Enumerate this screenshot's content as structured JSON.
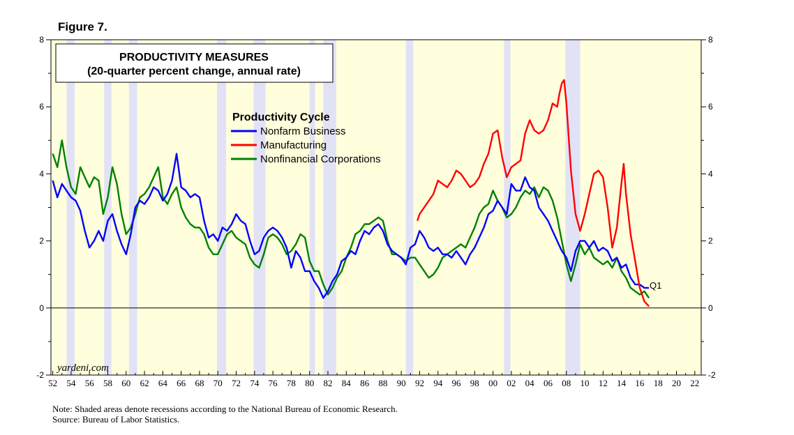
{
  "figure_label": "Figure 7.",
  "notes": {
    "note": "Note: Shaded areas denote recessions according to the National Bureau of Economic Research.",
    "source": "Source: Bureau of Labor Statistics."
  },
  "chart_data": {
    "type": "line",
    "title": "PRODUCTIVITY MEASURES",
    "subtitle": "(20-quarter percent change, annual rate)",
    "legend_title": "Productivity Cycle",
    "watermark": "yardeni.com",
    "end_label": "Q1",
    "xlabel": "",
    "ylabel": "",
    "xlim": [
      1951.8,
      2022.7
    ],
    "ylim": [
      -2,
      8
    ],
    "y_ticks": [
      -2,
      0,
      2,
      4,
      6,
      8
    ],
    "y_tick_labels": [
      "-2",
      "0",
      "2",
      "4",
      "6",
      "8"
    ],
    "x_ticks": [
      1952,
      1954,
      1956,
      1958,
      1960,
      1962,
      1964,
      1966,
      1968,
      1970,
      1972,
      1974,
      1976,
      1978,
      1980,
      1982,
      1984,
      1986,
      1988,
      1990,
      1992,
      1994,
      1996,
      1998,
      2000,
      2002,
      2004,
      2006,
      2008,
      2010,
      2012,
      2014,
      2016,
      2018,
      2020,
      2022
    ],
    "x_tick_labels": [
      "52",
      "54",
      "56",
      "58",
      "60",
      "62",
      "64",
      "66",
      "68",
      "70",
      "72",
      "74",
      "76",
      "78",
      "80",
      "82",
      "84",
      "86",
      "88",
      "90",
      "92",
      "94",
      "96",
      "98",
      "00",
      "02",
      "04",
      "06",
      "08",
      "10",
      "12",
      "14",
      "16",
      "18",
      "20",
      "22"
    ],
    "recessions": [
      [
        1953.5,
        1954.4
      ],
      [
        1957.6,
        1958.4
      ],
      [
        1960.3,
        1961.2
      ],
      [
        1969.9,
        1970.9
      ],
      [
        1973.9,
        1975.2
      ],
      [
        1980.0,
        1980.6
      ],
      [
        1981.5,
        1982.9
      ],
      [
        1990.5,
        1991.3
      ],
      [
        2001.2,
        2001.9
      ],
      [
        2007.9,
        2009.5
      ]
    ],
    "colors": {
      "background": "#ffffdd",
      "recession": "#e2e2f7",
      "axis": "#000000",
      "title_box": "#ffffff"
    },
    "series": [
      {
        "name": "Nonfarm Business",
        "color": "#0000ff",
        "x": [
          1952.0,
          1952.5,
          1953.0,
          1953.5,
          1954.0,
          1954.5,
          1955.0,
          1955.5,
          1956.0,
          1956.5,
          1957.0,
          1957.5,
          1958.0,
          1958.5,
          1959.0,
          1959.5,
          1960.0,
          1960.5,
          1961.0,
          1961.5,
          1962.0,
          1962.5,
          1963.0,
          1963.5,
          1964.0,
          1964.5,
          1965.0,
          1965.5,
          1966.0,
          1966.5,
          1967.0,
          1967.5,
          1968.0,
          1968.5,
          1969.0,
          1969.5,
          1970.0,
          1970.5,
          1971.0,
          1971.5,
          1972.0,
          1972.5,
          1973.0,
          1973.5,
          1974.0,
          1974.5,
          1975.0,
          1975.5,
          1976.0,
          1976.5,
          1977.0,
          1977.5,
          1978.0,
          1978.5,
          1979.0,
          1979.5,
          1980.0,
          1980.5,
          1981.0,
          1981.5,
          1982.0,
          1982.5,
          1983.0,
          1983.5,
          1984.0,
          1984.5,
          1985.0,
          1985.5,
          1986.0,
          1986.5,
          1987.0,
          1987.5,
          1988.0,
          1988.5,
          1989.0,
          1989.5,
          1990.0,
          1990.5,
          1991.0,
          1991.5,
          1992.0,
          1992.5,
          1993.0,
          1993.5,
          1994.0,
          1994.5,
          1995.0,
          1995.5,
          1996.0,
          1996.5,
          1997.0,
          1997.5,
          1998.0,
          1998.5,
          1999.0,
          1999.5,
          2000.0,
          2000.5,
          2001.0,
          2001.5,
          2002.0,
          2002.5,
          2003.0,
          2003.5,
          2004.0,
          2004.5,
          2005.0,
          2005.5,
          2006.0,
          2006.5,
          2007.0,
          2007.5,
          2008.0,
          2008.5,
          2009.0,
          2009.5,
          2010.0,
          2010.5,
          2011.0,
          2011.5,
          2012.0,
          2012.5,
          2013.0,
          2013.5,
          2014.0,
          2014.5,
          2015.0,
          2015.5,
          2016.0,
          2016.5,
          2017.0
        ],
        "values": [
          3.8,
          3.3,
          3.7,
          3.5,
          3.3,
          3.2,
          2.9,
          2.3,
          1.8,
          2.0,
          2.3,
          2.0,
          2.6,
          2.8,
          2.3,
          1.9,
          1.6,
          2.2,
          3.0,
          3.2,
          3.1,
          3.3,
          3.6,
          3.5,
          3.2,
          3.4,
          3.8,
          4.6,
          3.6,
          3.5,
          3.3,
          3.4,
          3.3,
          2.6,
          2.1,
          2.2,
          2.0,
          2.4,
          2.3,
          2.5,
          2.8,
          2.6,
          2.5,
          2.0,
          1.6,
          1.7,
          2.1,
          2.3,
          2.4,
          2.3,
          2.1,
          1.8,
          1.2,
          1.7,
          1.5,
          1.1,
          1.1,
          0.8,
          0.6,
          0.3,
          0.5,
          0.8,
          1.0,
          1.4,
          1.5,
          1.7,
          1.6,
          2.0,
          2.3,
          2.2,
          2.4,
          2.5,
          2.3,
          1.9,
          1.7,
          1.6,
          1.5,
          1.3,
          1.8,
          1.9,
          2.3,
          2.1,
          1.8,
          1.7,
          1.8,
          1.6,
          1.6,
          1.5,
          1.7,
          1.5,
          1.3,
          1.6,
          1.8,
          2.1,
          2.4,
          2.8,
          2.9,
          3.2,
          3.0,
          2.8,
          3.7,
          3.5,
          3.5,
          3.9,
          3.6,
          3.5,
          3.0,
          2.8,
          2.6,
          2.3,
          2.0,
          1.7,
          1.5,
          1.1,
          1.7,
          2.0,
          2.0,
          1.8,
          2.0,
          1.7,
          1.8,
          1.7,
          1.4,
          1.5,
          1.2,
          1.3,
          0.9,
          0.7,
          0.7,
          0.6,
          0.6
        ]
      },
      {
        "name": "Manufacturing",
        "color": "#ff0000",
        "x": [
          1991.75,
          1992.0,
          1992.5,
          1993.0,
          1993.5,
          1994.0,
          1994.5,
          1995.0,
          1995.5,
          1996.0,
          1996.5,
          1997.0,
          1997.5,
          1998.0,
          1998.5,
          1999.0,
          1999.5,
          2000.0,
          2000.5,
          2001.0,
          2001.5,
          2002.0,
          2002.5,
          2003.0,
          2003.5,
          2004.0,
          2004.5,
          2005.0,
          2005.5,
          2006.0,
          2006.5,
          2007.0,
          2007.25,
          2007.5,
          2007.75,
          2008.0,
          2008.5,
          2009.0,
          2009.5,
          2010.0,
          2010.5,
          2011.0,
          2011.5,
          2012.0,
          2012.5,
          2013.0,
          2013.5,
          2014.0,
          2014.25,
          2014.5,
          2015.0,
          2015.5,
          2016.0,
          2016.5,
          2017.0
        ],
        "values": [
          2.6,
          2.8,
          3.0,
          3.2,
          3.4,
          3.8,
          3.7,
          3.6,
          3.8,
          4.1,
          4.0,
          3.8,
          3.6,
          3.7,
          3.9,
          4.3,
          4.6,
          5.2,
          5.3,
          4.5,
          3.9,
          4.2,
          4.3,
          4.4,
          5.2,
          5.6,
          5.3,
          5.2,
          5.3,
          5.6,
          6.1,
          6.0,
          6.4,
          6.7,
          6.8,
          6.1,
          4.1,
          2.8,
          2.3,
          2.8,
          3.4,
          4.0,
          4.1,
          3.9,
          3.0,
          1.8,
          2.4,
          3.7,
          4.3,
          3.4,
          2.2,
          1.4,
          0.6,
          0.2,
          0.05
        ]
      },
      {
        "name": "Nonfinancial Corporations",
        "color": "#008000",
        "x": [
          1952.0,
          1952.5,
          1953.0,
          1953.5,
          1954.0,
          1954.5,
          1955.0,
          1955.5,
          1956.0,
          1956.5,
          1957.0,
          1957.5,
          1958.0,
          1958.5,
          1959.0,
          1959.5,
          1960.0,
          1960.5,
          1961.0,
          1961.5,
          1962.0,
          1962.5,
          1963.0,
          1963.5,
          1964.0,
          1964.5,
          1965.0,
          1965.5,
          1966.0,
          1966.5,
          1967.0,
          1967.5,
          1968.0,
          1968.5,
          1969.0,
          1969.5,
          1970.0,
          1970.5,
          1971.0,
          1971.5,
          1972.0,
          1972.5,
          1973.0,
          1973.5,
          1974.0,
          1974.5,
          1975.0,
          1975.5,
          1976.0,
          1976.5,
          1977.0,
          1977.5,
          1978.0,
          1978.5,
          1979.0,
          1979.5,
          1980.0,
          1980.5,
          1981.0,
          1981.5,
          1982.0,
          1982.5,
          1983.0,
          1983.5,
          1984.0,
          1984.5,
          1985.0,
          1985.5,
          1986.0,
          1986.5,
          1987.0,
          1987.5,
          1988.0,
          1988.5,
          1989.0,
          1989.5,
          1990.0,
          1990.5,
          1991.0,
          1991.5,
          1992.0,
          1992.5,
          1993.0,
          1993.5,
          1994.0,
          1994.5,
          1995.0,
          1995.5,
          1996.0,
          1996.5,
          1997.0,
          1997.5,
          1998.0,
          1998.5,
          1999.0,
          1999.5,
          2000.0,
          2000.5,
          2001.0,
          2001.5,
          2002.0,
          2002.5,
          2003.0,
          2003.5,
          2004.0,
          2004.5,
          2005.0,
          2005.5,
          2006.0,
          2006.5,
          2007.0,
          2007.5,
          2008.0,
          2008.5,
          2009.0,
          2009.5,
          2010.0,
          2010.5,
          2011.0,
          2011.5,
          2012.0,
          2012.5,
          2013.0,
          2013.5,
          2014.0,
          2014.5,
          2015.0,
          2015.5,
          2016.0,
          2016.5,
          2017.0
        ],
        "values": [
          4.6,
          4.2,
          5.0,
          4.2,
          3.6,
          3.4,
          4.2,
          3.9,
          3.6,
          3.9,
          3.8,
          2.8,
          3.3,
          4.2,
          3.7,
          2.8,
          2.2,
          2.4,
          2.8,
          3.3,
          3.4,
          3.6,
          3.9,
          4.2,
          3.3,
          3.1,
          3.4,
          3.6,
          3.0,
          2.7,
          2.5,
          2.4,
          2.4,
          2.2,
          1.8,
          1.6,
          1.6,
          1.9,
          2.2,
          2.3,
          2.1,
          2.0,
          1.9,
          1.5,
          1.3,
          1.2,
          1.6,
          2.1,
          2.2,
          2.1,
          1.9,
          1.6,
          1.7,
          1.9,
          2.2,
          2.1,
          1.4,
          1.1,
          1.1,
          0.7,
          0.4,
          0.6,
          0.9,
          1.1,
          1.5,
          1.8,
          2.2,
          2.3,
          2.5,
          2.5,
          2.6,
          2.7,
          2.6,
          2.0,
          1.6,
          1.6,
          1.5,
          1.4,
          1.5,
          1.5,
          1.3,
          1.1,
          0.9,
          1.0,
          1.2,
          1.5,
          1.6,
          1.7,
          1.8,
          1.9,
          1.8,
          2.1,
          2.4,
          2.8,
          3.0,
          3.1,
          3.5,
          3.2,
          3.0,
          2.7,
          2.8,
          3.0,
          3.3,
          3.5,
          3.4,
          3.6,
          3.3,
          3.6,
          3.5,
          3.2,
          2.7,
          2.0,
          1.3,
          0.8,
          1.3,
          1.9,
          1.6,
          1.8,
          1.5,
          1.4,
          1.3,
          1.4,
          1.2,
          1.5,
          1.1,
          0.9,
          0.6,
          0.5,
          0.4,
          0.5,
          0.3
        ]
      }
    ]
  }
}
